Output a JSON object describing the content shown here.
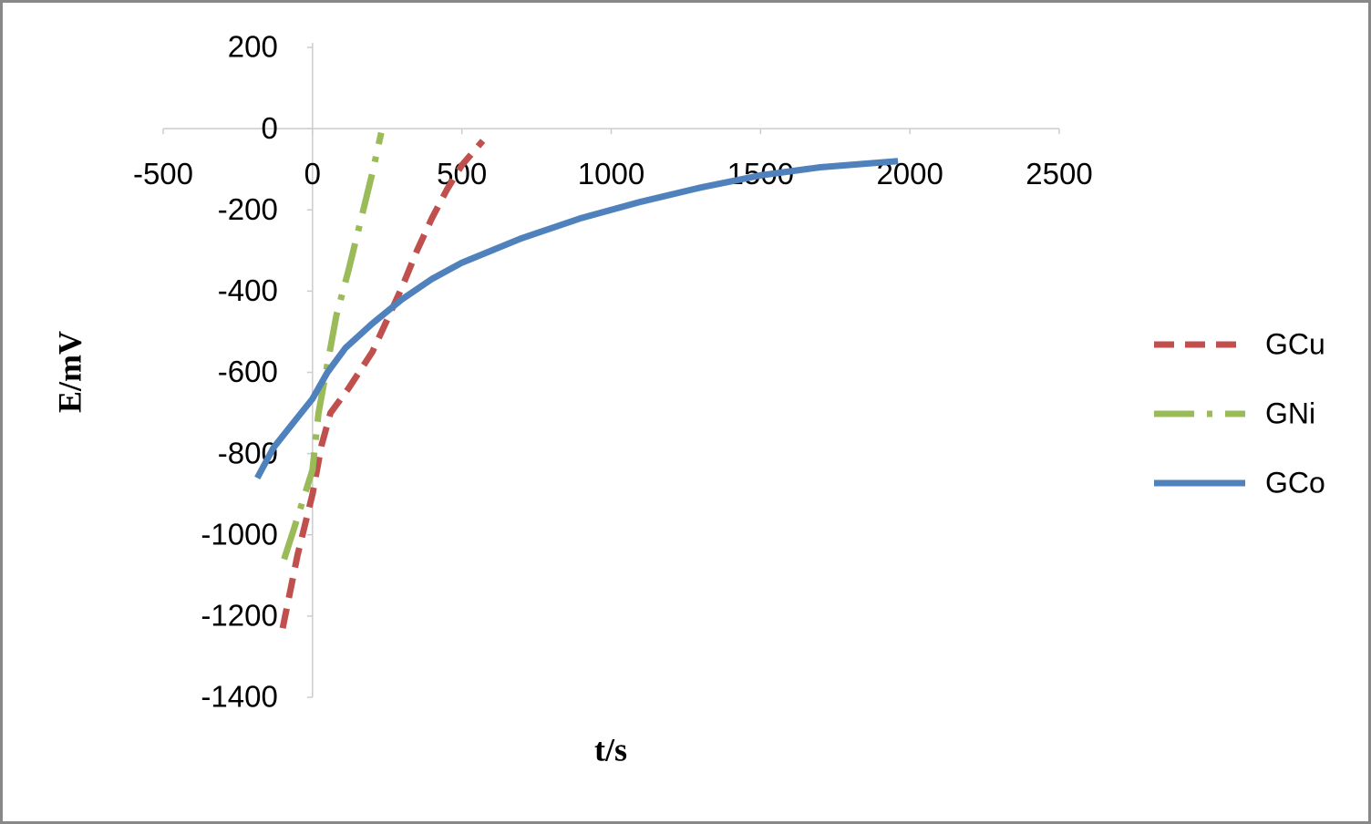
{
  "chart_data": {
    "type": "line",
    "x_label": "t/s",
    "y_label": "E/mV",
    "xlim": [
      -500,
      2500
    ],
    "xticks": [
      -500,
      0,
      500,
      1000,
      1500,
      2000,
      2500
    ],
    "ylim": [
      -1400,
      200
    ],
    "yticks": [
      -1400,
      -1200,
      -1000,
      -800,
      -600,
      -400,
      -200,
      0,
      200
    ],
    "grid": false,
    "legend": "right",
    "series": [
      {
        "name": "GCu",
        "color": "#c0504d",
        "dash": "dash",
        "x": [
          -100,
          -50,
          0,
          30,
          60,
          120,
          200,
          250,
          300,
          350,
          400,
          450,
          500,
          570
        ],
        "values": [
          -1230,
          -1050,
          -900,
          -780,
          -700,
          -640,
          -550,
          -470,
          -390,
          -300,
          -220,
          -150,
          -90,
          -30
        ]
      },
      {
        "name": "GNi",
        "color": "#9bbb59",
        "dash": "longdashdot",
        "x": [
          -95,
          -60,
          -30,
          0,
          20,
          50,
          80,
          120,
          160,
          200,
          230
        ],
        "values": [
          -1060,
          -980,
          -910,
          -840,
          -700,
          -580,
          -460,
          -350,
          -230,
          -110,
          -10
        ]
      },
      {
        "name": "GCo",
        "color": "#4f81bd",
        "dash": "solid",
        "x": [
          -185,
          -130,
          -60,
          0,
          50,
          110,
          200,
          300,
          400,
          500,
          700,
          900,
          1100,
          1300,
          1500,
          1700,
          1960
        ],
        "values": [
          -860,
          -785,
          -720,
          -665,
          -600,
          -540,
          -480,
          -420,
          -370,
          -330,
          -270,
          -220,
          -180,
          -145,
          -115,
          -95,
          -80
        ]
      }
    ]
  }
}
